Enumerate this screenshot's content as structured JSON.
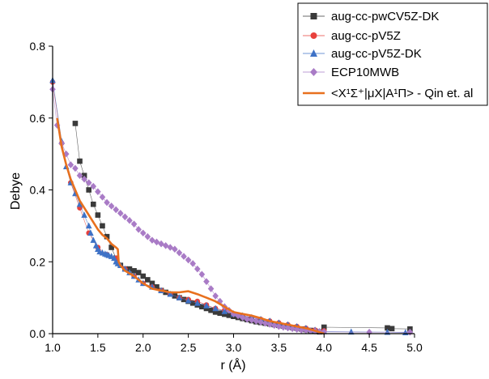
{
  "chart_data": {
    "type": "line",
    "xlabel": "r (Å)",
    "ylabel": "Debye",
    "xlim": [
      1.0,
      5.0
    ],
    "ylim": [
      0.0,
      0.8
    ],
    "xticks": [
      "1.0",
      "1.5",
      "2.0",
      "2.5",
      "3.0",
      "3.5",
      "4.0",
      "4.5",
      "5.0"
    ],
    "yticks": [
      "0.0",
      "0.2",
      "0.4",
      "0.6",
      "0.8"
    ],
    "grid": false,
    "legend_position": "top-right",
    "series": [
      {
        "name": "aug-cc-pwCV5Z-DK",
        "color": "#3a3a3a",
        "marker": "square",
        "x": [
          1.25,
          1.3,
          1.35,
          1.4,
          1.45,
          1.5,
          1.55,
          1.6,
          1.65,
          1.7,
          1.75,
          1.8,
          1.85,
          1.9,
          1.95,
          2.0,
          2.05,
          2.1,
          2.15,
          2.2,
          2.25,
          2.3,
          2.35,
          2.4,
          2.45,
          2.5,
          2.55,
          2.6,
          2.65,
          2.7,
          2.75,
          2.8,
          2.85,
          2.9,
          2.95,
          3.0,
          3.05,
          3.1,
          3.15,
          3.2,
          3.25,
          3.3,
          3.35,
          3.4,
          3.45,
          3.5,
          3.55,
          3.6,
          3.65,
          3.7,
          3.75,
          3.8,
          3.85,
          3.9,
          3.95,
          4.0,
          4.7,
          4.75,
          4.95
        ],
        "y": [
          0.585,
          0.48,
          0.44,
          0.4,
          0.36,
          0.33,
          0.3,
          0.27,
          0.24,
          0.21,
          0.19,
          0.18,
          0.18,
          0.175,
          0.17,
          0.16,
          0.15,
          0.14,
          0.13,
          0.12,
          0.115,
          0.11,
          0.105,
          0.1,
          0.095,
          0.09,
          0.085,
          0.08,
          0.075,
          0.07,
          0.065,
          0.06,
          0.057,
          0.054,
          0.051,
          0.048,
          0.045,
          0.042,
          0.039,
          0.036,
          0.033,
          0.031,
          0.029,
          0.027,
          0.025,
          0.023,
          0.021,
          0.019,
          0.017,
          0.015,
          0.013,
          0.011,
          0.009,
          0.007,
          0.005,
          0.018,
          0.016,
          0.014,
          0.013
        ]
      },
      {
        "name": "aug-cc-pV5Z",
        "color": "#e8413c",
        "marker": "circle",
        "x": [
          1.0,
          1.1,
          1.2,
          1.3,
          1.4,
          1.5,
          1.6,
          1.7,
          1.8,
          1.9,
          2.0,
          2.1,
          2.2,
          2.3,
          2.4,
          2.5,
          2.6,
          2.7,
          2.8,
          2.9,
          3.0,
          3.1,
          3.2,
          3.3,
          3.4,
          3.5,
          3.6,
          3.7,
          3.8,
          3.9,
          4.0
        ],
        "y": [
          0.7,
          0.53,
          0.42,
          0.35,
          0.28,
          0.24,
          0.22,
          0.21,
          0.18,
          0.16,
          0.14,
          0.13,
          0.12,
          0.11,
          0.1,
          0.095,
          0.09,
          0.08,
          0.07,
          0.065,
          0.055,
          0.05,
          0.045,
          0.04,
          0.035,
          0.03,
          0.025,
          0.02,
          0.015,
          0.01,
          0.008
        ]
      },
      {
        "name": "aug-cc-pV5Z-DK",
        "color": "#3f72c6",
        "marker": "triangle",
        "x": [
          1.0,
          1.1,
          1.15,
          1.2,
          1.25,
          1.3,
          1.35,
          1.4,
          1.42,
          1.45,
          1.48,
          1.5,
          1.52,
          1.55,
          1.58,
          1.6,
          1.62,
          1.65,
          1.68,
          1.7,
          1.72,
          1.75,
          1.8,
          1.85,
          1.9,
          1.95,
          2.0,
          2.1,
          2.2,
          2.3,
          2.4,
          2.5,
          2.6,
          2.7,
          2.8,
          2.9,
          3.0,
          3.1,
          3.2,
          3.3,
          3.4,
          3.5,
          3.6,
          3.7,
          3.8,
          3.9,
          4.0,
          4.3,
          4.7,
          4.9
        ],
        "y": [
          0.705,
          0.535,
          0.465,
          0.42,
          0.39,
          0.36,
          0.33,
          0.3,
          0.28,
          0.26,
          0.245,
          0.235,
          0.228,
          0.225,
          0.222,
          0.22,
          0.218,
          0.215,
          0.21,
          0.2,
          0.195,
          0.19,
          0.18,
          0.17,
          0.16,
          0.15,
          0.14,
          0.13,
          0.12,
          0.11,
          0.1,
          0.092,
          0.085,
          0.078,
          0.07,
          0.062,
          0.055,
          0.05,
          0.045,
          0.04,
          0.035,
          0.03,
          0.025,
          0.02,
          0.015,
          0.01,
          0.006,
          0.005,
          0.004,
          0.003
        ]
      },
      {
        "name": "ECP10MWB",
        "color": "#a97bc6",
        "marker": "diamond",
        "x": [
          1.0,
          1.05,
          1.1,
          1.15,
          1.2,
          1.25,
          1.3,
          1.35,
          1.4,
          1.45,
          1.5,
          1.55,
          1.6,
          1.65,
          1.7,
          1.75,
          1.8,
          1.85,
          1.9,
          1.95,
          2.0,
          2.05,
          2.1,
          2.15,
          2.2,
          2.25,
          2.3,
          2.35,
          2.4,
          2.45,
          2.5,
          2.55,
          2.6,
          2.65,
          2.7,
          2.75,
          2.8,
          2.85,
          2.9,
          2.95,
          3.0,
          3.05,
          3.1,
          3.15,
          3.2,
          3.25,
          3.3,
          3.35,
          3.4,
          3.45,
          3.5,
          3.55,
          3.6,
          3.65,
          3.7,
          3.75,
          3.8,
          3.85,
          3.9,
          3.95,
          4.0,
          4.5,
          4.95
        ],
        "y": [
          0.68,
          0.58,
          0.53,
          0.5,
          0.47,
          0.46,
          0.44,
          0.43,
          0.42,
          0.41,
          0.395,
          0.38,
          0.365,
          0.355,
          0.345,
          0.335,
          0.325,
          0.315,
          0.305,
          0.29,
          0.28,
          0.27,
          0.26,
          0.255,
          0.25,
          0.245,
          0.24,
          0.235,
          0.225,
          0.215,
          0.205,
          0.195,
          0.18,
          0.165,
          0.145,
          0.125,
          0.105,
          0.09,
          0.075,
          0.065,
          0.055,
          0.05,
          0.045,
          0.04,
          0.038,
          0.035,
          0.032,
          0.029,
          0.026,
          0.023,
          0.02,
          0.018,
          0.016,
          0.014,
          0.012,
          0.01,
          0.009,
          0.008,
          0.007,
          0.006,
          0.005,
          0.004,
          0.004
        ]
      },
      {
        "name": "<X¹Σ⁺|μX|A¹Π> - Qin et. al",
        "color": "#e8701e",
        "marker": "none",
        "x": [
          1.05,
          1.1,
          1.15,
          1.2,
          1.3,
          1.4,
          1.45,
          1.5,
          1.55,
          1.6,
          1.65,
          1.7,
          1.72,
          1.73,
          1.75,
          1.8,
          1.9,
          2.0,
          2.1,
          2.2,
          2.3,
          2.4,
          2.5,
          2.6,
          2.7,
          2.8,
          2.9,
          3.0,
          3.1,
          3.2,
          3.3,
          3.4,
          3.5,
          3.6,
          3.7,
          3.8,
          3.9,
          4.0
        ],
        "y": [
          0.6,
          0.52,
          0.47,
          0.43,
          0.37,
          0.33,
          0.31,
          0.29,
          0.275,
          0.265,
          0.25,
          0.24,
          0.235,
          0.2,
          0.19,
          0.175,
          0.16,
          0.14,
          0.125,
          0.12,
          0.115,
          0.115,
          0.118,
          0.11,
          0.1,
          0.09,
          0.075,
          0.06,
          0.055,
          0.05,
          0.043,
          0.035,
          0.03,
          0.025,
          0.02,
          0.015,
          0.008,
          0.0
        ]
      }
    ],
    "legend_labels": [
      "aug-cc-pwCV5Z-DK",
      "aug-cc-pV5Z",
      "aug-cc-pV5Z-DK",
      "ECP10MWB",
      "<X¹Σ⁺|μX|A¹Π> - Qin et. al"
    ]
  }
}
